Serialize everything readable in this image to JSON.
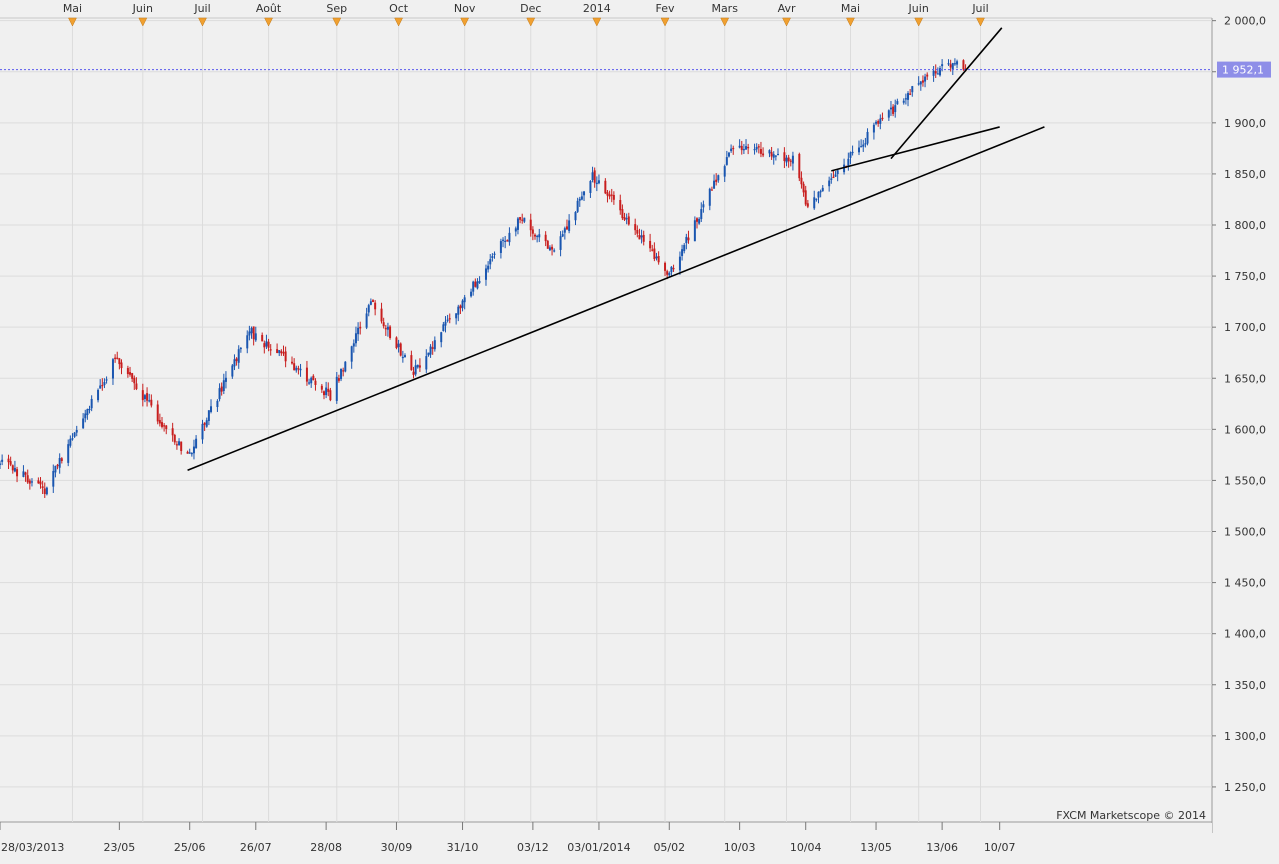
{
  "chart_data": {
    "type": "candlestick",
    "title": "",
    "xlabel": "",
    "ylabel": "",
    "ylim": [
      1250,
      2000
    ],
    "y_ticks": [
      "1 250,0",
      "1 300,0",
      "1 350,0",
      "1 400,0",
      "1 450,0",
      "1 500,0",
      "1 550,0",
      "1 600,0",
      "1 650,0",
      "1 700,0",
      "1 750,0",
      "1 800,0",
      "1 850,0",
      "1 900,0",
      "1 950,0",
      "2 000,0"
    ],
    "x_bottom_ticks": [
      "28/03/2013",
      "23/05",
      "25/06",
      "26/07",
      "28/08",
      "30/09",
      "31/10",
      "03/12",
      "03/01/2014",
      "05/02",
      "10/03",
      "10/04",
      "13/05",
      "13/06",
      "10/07"
    ],
    "x_top_month_ticks": [
      "Mai",
      "Juin",
      "Juil",
      "Août",
      "Sep",
      "Oct",
      "Nov",
      "Dec",
      "2014",
      "Fev",
      "Mars",
      "Avr",
      "Mai",
      "Juin",
      "Juil"
    ],
    "current_price": 1952.1,
    "current_price_label": "1 952,1",
    "up_color": "#1a56b0",
    "down_color": "#c81e1e",
    "price_line_color": "#5a5aee",
    "watermark": "FXCM Marketscope © 2014",
    "grid": true,
    "price_path": [
      {
        "date": "2013-03-28",
        "close": 1569
      },
      {
        "date": "2013-04-18",
        "close": 1541
      },
      {
        "date": "2013-05-21",
        "close": 1669
      },
      {
        "date": "2013-06-24",
        "close": 1573
      },
      {
        "date": "2013-07-23",
        "close": 1696
      },
      {
        "date": "2013-08-30",
        "close": 1633
      },
      {
        "date": "2013-09-18",
        "close": 1725
      },
      {
        "date": "2013-10-08",
        "close": 1656
      },
      {
        "date": "2013-11-27",
        "close": 1807
      },
      {
        "date": "2013-12-13",
        "close": 1775
      },
      {
        "date": "2013-12-31",
        "close": 1848
      },
      {
        "date": "2014-02-05",
        "close": 1751
      },
      {
        "date": "2014-03-07",
        "close": 1878
      },
      {
        "date": "2014-04-04",
        "close": 1865
      },
      {
        "date": "2014-04-11",
        "close": 1815
      },
      {
        "date": "2014-05-13",
        "close": 1897
      },
      {
        "date": "2014-06-09",
        "close": 1951
      },
      {
        "date": "2014-06-20",
        "close": 1962
      },
      {
        "date": "2014-06-24",
        "close": 1952
      }
    ],
    "trendlines": [
      {
        "from": {
          "date": "2013-06-24",
          "value": 1560
        },
        "to": {
          "date": "2014-07-31",
          "value": 1896
        }
      },
      {
        "from": {
          "date": "2014-04-22",
          "value": 1853
        },
        "to": {
          "date": "2014-07-10",
          "value": 1896
        }
      },
      {
        "from": {
          "date": "2014-05-20",
          "value": 1865
        },
        "to": {
          "date": "2014-07-11",
          "value": 1993
        }
      }
    ]
  }
}
